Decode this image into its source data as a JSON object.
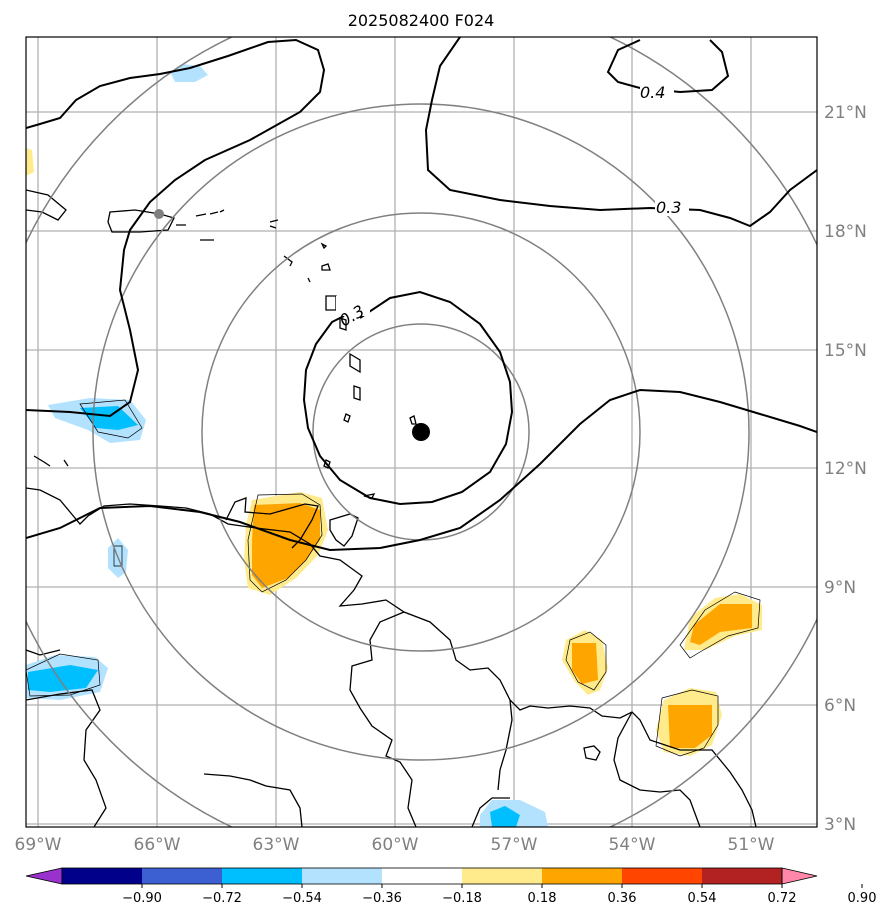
{
  "title": "2025082400 F024",
  "lat_ticks": [
    "21°N",
    "18°N",
    "15°N",
    "12°N",
    "9°N",
    "6°N",
    "3°N"
  ],
  "lon_ticks": [
    "69°W",
    "66°W",
    "63°W",
    "60°W",
    "57°W",
    "54°W",
    "51°W"
  ],
  "contour_labels": [
    "0.4",
    "0.3",
    "0.3"
  ],
  "colorbar": {
    "ticks": [
      "−0.90",
      "−0.72",
      "−0.54",
      "−0.36",
      "−0.18",
      "0.18",
      "0.36",
      "0.54",
      "0.72",
      "0.90"
    ],
    "colors": [
      "#9932cc",
      "#00008b",
      "#3c5fd2",
      "#00bfff",
      "#b3e2ff",
      "#ffffff",
      "#ffeb8c",
      "#ffa500",
      "#ff4500",
      "#b22222",
      "#ff88aa"
    ]
  },
  "center_marker": "storm-center-dot",
  "colors": {
    "grid": "#b0b0b0",
    "range_rings": "#808080",
    "coast": "#000000",
    "orange_fill": "#ffa500",
    "yellow_fill": "#ffeb8c",
    "light_blue_fill": "#b3e2ff",
    "blue_fill": "#00bfff"
  }
}
